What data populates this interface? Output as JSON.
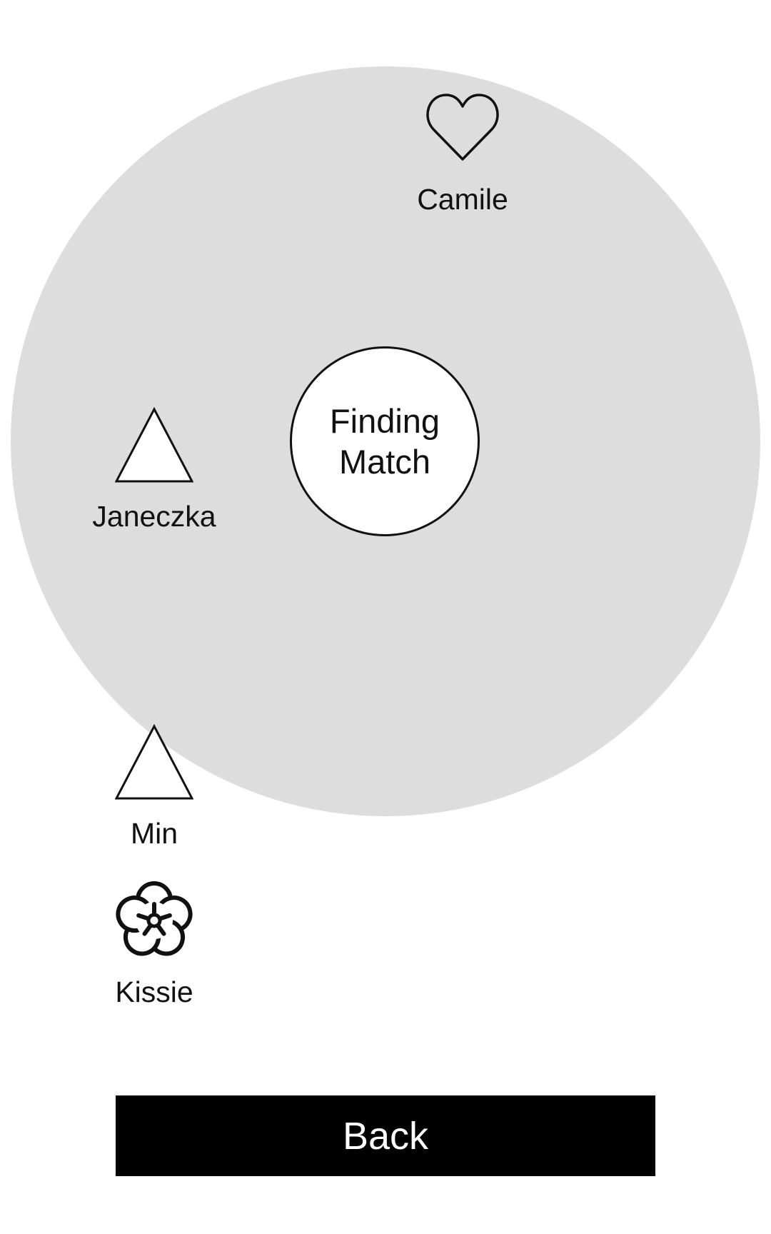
{
  "match": {
    "status_line1": "Finding",
    "status_line2": "Match"
  },
  "nearby_users": [
    {
      "name": "Camile",
      "icon": "heart-icon"
    },
    {
      "name": "Janeczka",
      "icon": "triangle-icon"
    },
    {
      "name": "Min",
      "icon": "triangle-icon"
    },
    {
      "name": "Kissie",
      "icon": "flower-icon"
    }
  ],
  "back_button": {
    "label": "Back"
  },
  "colors": {
    "radar": "#dddddd",
    "button_background": "#000000",
    "button_text": "#ffffff",
    "outline": "#111111"
  }
}
